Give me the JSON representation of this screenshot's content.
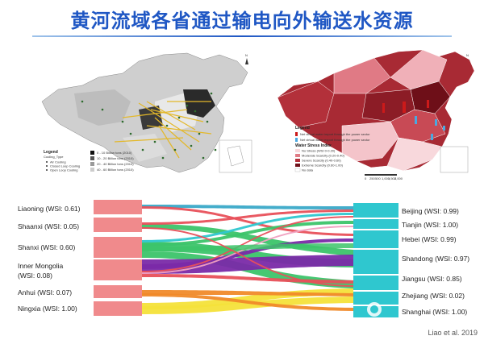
{
  "title": "黄河流域各省通过输电向外输送水资源",
  "map_left": {
    "legend_title": "Legend",
    "legend_subtitle": "Cooling_Type",
    "legend_items": [
      "Air Cooling",
      "Closed Loop Cooling",
      "Open Loop Cooling"
    ],
    "size_items": [
      "0 - 10 Billion tons (2010)",
      "10 - 20 Billion tons (2010)",
      "20 - 40 Billion tons (2010)",
      "40 - 60 Billion tons (2010)"
    ]
  },
  "map_right": {
    "legend_title": "Legend",
    "flow_items": [
      "Net virtual water import through the power sector",
      "Net virtual water export through the power sector"
    ],
    "index_title": "Water Stress Index",
    "index_items": [
      "No Stress (WSI 0-0.20)",
      "Moderate Scarcity (0.20-0.40)",
      "Severe Scarcity (0.40-0.60)",
      "Extreme Scarcity (0.60-1.00)",
      "No data"
    ],
    "scale_labels": [
      "0",
      "250",
      "500",
      "1,000",
      "1,500",
      "2,000"
    ]
  },
  "sankey": {
    "sources": [
      {
        "label": "Liaoning (WSI: 0.61)"
      },
      {
        "label": "Shaanxi (WSI: 0.05)"
      },
      {
        "label": "Shanxi (WSI: 0.60)"
      },
      {
        "label": "Inner Mongolia"
      },
      {
        "label": "(WSI: 0.08)"
      },
      {
        "label": "Anhui (WSI: 0.07)"
      },
      {
        "label": "Ningxia (WSI: 1.00)"
      }
    ],
    "targets": [
      {
        "label": "Beijing (WSI: 0.99)"
      },
      {
        "label": "Tianjin (WSI: 1.00)"
      },
      {
        "label": "Hebei (WSI: 0.99)"
      },
      {
        "label": "Shandong (WSI: 0.97)"
      },
      {
        "label": "Jiangsu (WSI: 0.85)"
      },
      {
        "label": "Zhejiang (WSI: 0.02)"
      },
      {
        "label": "Shanghai (WSI: 1.00)"
      }
    ],
    "colors": {
      "source_node": "#f08a8c",
      "target_node": "#2fc7cf",
      "green": "#3cc46a",
      "purple": "#7a2aa8",
      "orange": "#f08a2a",
      "yellow": "#f4e23a",
      "red": "#e8505a",
      "teal": "#3aa9c8",
      "pink": "#f0a0c0"
    }
  },
  "credit": "Liao et al. 2019"
}
